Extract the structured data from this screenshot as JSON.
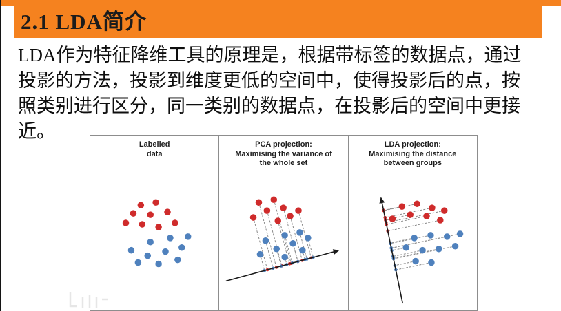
{
  "slide": {
    "title": "2.1 LDA简介",
    "paragraph_lines": [
      "LDA作为特征降维工具的原理是，根据带标签的数据点，通过",
      "投影的方法，投影到维度更低的空间中，使得投影后的点，按",
      "照类别进行区分，同一类别的数据点，在投影后的空间中更接",
      "近。"
    ]
  },
  "colors": {
    "accent_orange": "#F5821F",
    "red_point": "#CF2B2B",
    "blue_point": "#4F81BD",
    "axis_black": "#1A1A1A",
    "dash_gray": "#8A8A8A",
    "panel_border": "#8D8D8D"
  },
  "figure": {
    "panels": [
      {
        "name": "labelled-data",
        "title_lines": [
          "Labelled",
          "data"
        ],
        "red_points": [
          [
            74,
            102
          ],
          [
            96,
            98
          ],
          [
            63,
            114
          ],
          [
            88,
            116
          ],
          [
            113,
            112
          ],
          [
            52,
            128
          ],
          [
            76,
            130
          ],
          [
            100,
            134
          ],
          [
            124,
            128
          ]
        ],
        "blue_points": [
          [
            117,
            150
          ],
          [
            88,
            156
          ],
          [
            143,
            148
          ],
          [
            60,
            168
          ],
          [
            84,
            176
          ],
          [
            110,
            170
          ],
          [
            134,
            164
          ],
          [
            70,
            186
          ],
          [
            100,
            188
          ],
          [
            128,
            182
          ]
        ]
      },
      {
        "name": "pca-projection",
        "title_lines": [
          "PCA projection:",
          "Maximising the variance of",
          "the whole set"
        ],
        "axis": [
          10,
          213,
          176,
          168
        ],
        "red_points": [
          [
            58,
            98
          ],
          [
            80,
            94
          ],
          [
            70,
            110
          ],
          [
            94,
            106
          ],
          [
            50,
            120
          ],
          [
            104,
            118
          ],
          [
            86,
            125
          ],
          [
            116,
            110
          ]
        ],
        "blue_points": [
          [
            96,
            146
          ],
          [
            68,
            154
          ],
          [
            118,
            142
          ],
          [
            84,
            166
          ],
          [
            108,
            158
          ],
          [
            130,
            150
          ],
          [
            60,
            174
          ],
          [
            122,
            168
          ],
          [
            96,
            178
          ]
        ]
      },
      {
        "name": "lda-projection",
        "title_lines": [
          "LDA projection:",
          "Maximising the distance",
          "between groups"
        ],
        "axis": [
          79,
          246,
          47,
          90
        ],
        "red_points": [
          [
            78,
            104
          ],
          [
            100,
            100
          ],
          [
            122,
            106
          ],
          [
            90,
            116
          ],
          [
            114,
            118
          ],
          [
            140,
            110
          ],
          [
            64,
            122
          ],
          [
            134,
            124
          ]
        ],
        "blue_points": [
          [
            96,
            150
          ],
          [
            120,
            146
          ],
          [
            144,
            148
          ],
          [
            163,
            144
          ],
          [
            84,
            164
          ],
          [
            108,
            168
          ],
          [
            132,
            166
          ],
          [
            156,
            162
          ],
          [
            98,
            184
          ],
          [
            121,
            186
          ]
        ]
      }
    ]
  }
}
